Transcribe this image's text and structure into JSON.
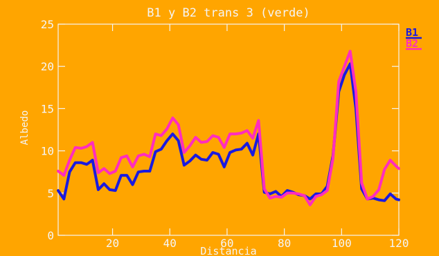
{
  "chart_data": {
    "type": "line",
    "title": "B1 y B2 trans 3 (verde)",
    "xlabel": "Distancia",
    "ylabel": "Albedo",
    "xlim": [
      1,
      120
    ],
    "ylim": [
      0,
      25
    ],
    "xticks": [
      20,
      40,
      60,
      80,
      100,
      120
    ],
    "yticks": [
      0,
      5,
      10,
      15,
      20,
      25
    ],
    "xtick_labels": [
      "20",
      "40",
      "60",
      "80",
      "100",
      "120"
    ],
    "ytick_labels": [
      "0",
      "5",
      "10",
      "15",
      "20",
      "25"
    ],
    "grid": false,
    "legend_position": "top-right outside",
    "background_color": "#FFA500",
    "text_color": "#F5F5F5",
    "x": [
      1,
      3,
      5,
      7,
      9,
      11,
      13,
      15,
      17,
      19,
      21,
      23,
      25,
      27,
      29,
      31,
      33,
      35,
      37,
      39,
      41,
      43,
      45,
      47,
      49,
      51,
      53,
      55,
      57,
      59,
      61,
      63,
      65,
      67,
      69,
      71,
      73,
      75,
      77,
      79,
      81,
      83,
      85,
      87,
      89,
      91,
      93,
      95,
      97,
      99,
      101,
      103,
      105,
      107,
      109,
      111,
      113,
      115,
      117,
      119,
      120
    ],
    "series": [
      {
        "name": "B1",
        "color": "#1A1AE0",
        "values": [
          5.3,
          4.3,
          7.5,
          8.6,
          8.6,
          8.4,
          8.9,
          5.4,
          6.1,
          5.4,
          5.3,
          7.1,
          7.1,
          6.0,
          7.5,
          7.6,
          7.6,
          9.9,
          10.2,
          11.2,
          12.0,
          11.2,
          8.3,
          8.8,
          9.5,
          9.0,
          8.9,
          9.8,
          9.6,
          8.1,
          9.8,
          10.1,
          10.2,
          10.9,
          9.5,
          12.0,
          5.1,
          4.9,
          5.2,
          4.6,
          5.3,
          5.1,
          4.8,
          4.7,
          4.3,
          4.9,
          4.9,
          5.8,
          9.4,
          17.0,
          19.0,
          20.3,
          15.0,
          5.5,
          4.3,
          4.4,
          4.2,
          4.1,
          4.9,
          4.3,
          4.2
        ]
      },
      {
        "name": "B2",
        "color": "#FF2DBE",
        "values": [
          7.6,
          7.1,
          8.9,
          10.4,
          10.3,
          10.5,
          11.0,
          7.4,
          7.9,
          7.3,
          7.6,
          9.2,
          9.4,
          8.1,
          9.4,
          9.6,
          9.3,
          12.0,
          11.8,
          12.6,
          13.9,
          13.1,
          9.8,
          10.6,
          11.6,
          11.0,
          11.1,
          11.8,
          11.6,
          10.4,
          12.0,
          12.0,
          12.1,
          12.4,
          11.5,
          13.6,
          5.5,
          4.4,
          4.6,
          4.5,
          5.0,
          5.0,
          4.9,
          4.7,
          3.6,
          4.6,
          4.8,
          5.3,
          9.1,
          18.2,
          20.0,
          21.8,
          17.0,
          6.2,
          4.3,
          4.6,
          5.4,
          7.8,
          8.9,
          8.2,
          7.9
        ]
      }
    ]
  }
}
